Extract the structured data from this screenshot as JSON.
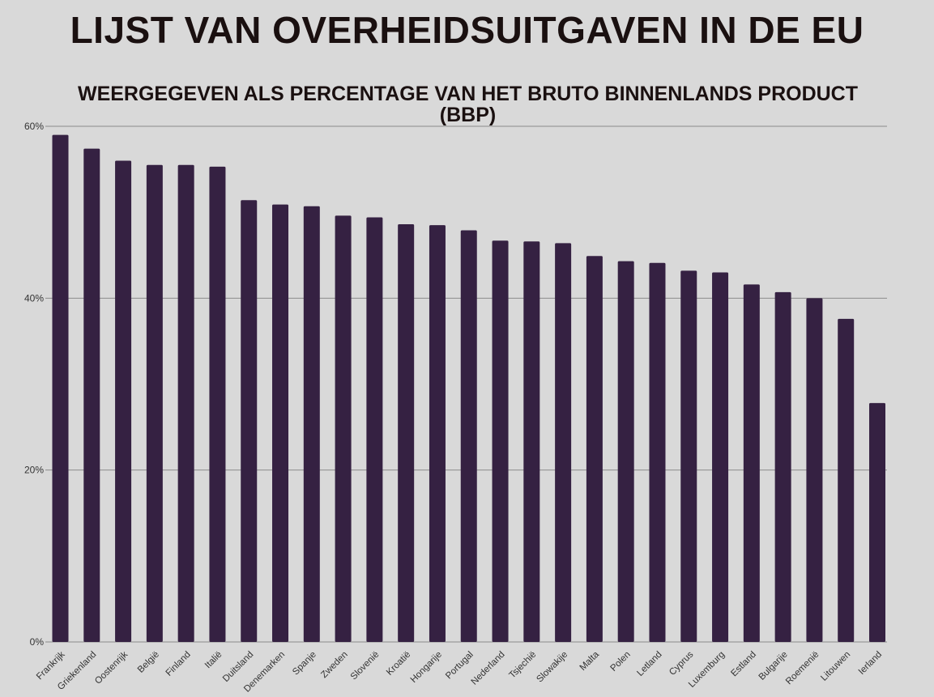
{
  "chart_data": {
    "type": "bar",
    "title": "LIJST VAN OVERHEIDSUITGAVEN IN DE EU",
    "subtitle": "WEERGEGEVEN ALS PERCENTAGE VAN HET BRUTO BINNENLANDS PRODUCT (BBP)",
    "xlabel": "",
    "ylabel": "",
    "ylim": [
      0,
      60
    ],
    "yticks": [
      0,
      20,
      40,
      60
    ],
    "ytick_labels": [
      "0%",
      "20%",
      "40%",
      "60%"
    ],
    "grid": true,
    "bar_color": "#352142",
    "categories": [
      "Frankrijk",
      "Griekenland",
      "Oostenrijk",
      "België",
      "Finland",
      "Italië",
      "Duitsland",
      "Denemarken",
      "Spanje",
      "Zweden",
      "Slovenië",
      "Kroatië",
      "Hongarije",
      "Portugal",
      "Nederland",
      "Tsjechië",
      "Slowakije",
      "Malta",
      "Polen",
      "Letland",
      "Cyprus",
      "Luxemburg",
      "Estland",
      "Bulgarije",
      "Roemenië",
      "Litouwen",
      "Ierland"
    ],
    "values": [
      59.0,
      57.4,
      56.0,
      55.5,
      55.5,
      55.3,
      51.4,
      50.9,
      50.7,
      49.6,
      49.4,
      48.6,
      48.5,
      47.9,
      46.7,
      46.6,
      46.4,
      44.9,
      44.3,
      44.1,
      43.2,
      43.0,
      41.6,
      40.7,
      40.0,
      37.6,
      27.8
    ]
  }
}
